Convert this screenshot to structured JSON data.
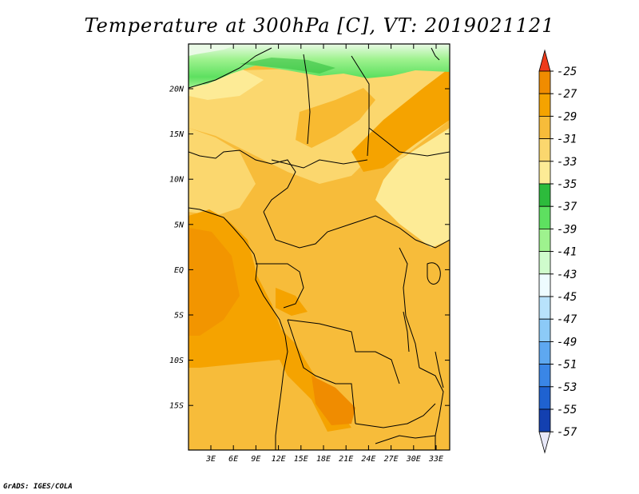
{
  "chart_data": {
    "type": "heatmap",
    "title": "Temperature at 300hPa [C], VT: 2019021121",
    "variable": "Temperature at 300hPa",
    "units": "C",
    "valid_time": "2019021121",
    "lat_ticks": [
      "20N",
      "15N",
      "10N",
      "5N",
      "EQ",
      "5S",
      "10S",
      "15S"
    ],
    "lon_ticks": [
      "3E",
      "6E",
      "9E",
      "12E",
      "15E",
      "18E",
      "21E",
      "24E",
      "27E",
      "30E",
      "33E"
    ],
    "colorbar": {
      "levels": [
        "-25",
        "-27",
        "-29",
        "-31",
        "-33",
        "-35",
        "-37",
        "-39",
        "-41",
        "-43",
        "-45",
        "-47",
        "-49",
        "-51",
        "-53",
        "-55",
        "-57"
      ],
      "colors": [
        "#f08c00",
        "#f5a300",
        "#f7bc3a",
        "#fbd76e",
        "#fdeb96",
        "#2dbb3c",
        "#5ee060",
        "#9ef28e",
        "#cffccc",
        "#eefcff",
        "#b8e2fb",
        "#8ccaf7",
        "#5ea8f0",
        "#3a86e6",
        "#1f62d0",
        "#1340b0",
        "#0c1a80"
      ],
      "top_arrow_color": "#ee3a1a",
      "bottom_arrow_color": "#e8e8f8"
    },
    "grid": false
  },
  "credit": "GrADS: IGES/COLA"
}
